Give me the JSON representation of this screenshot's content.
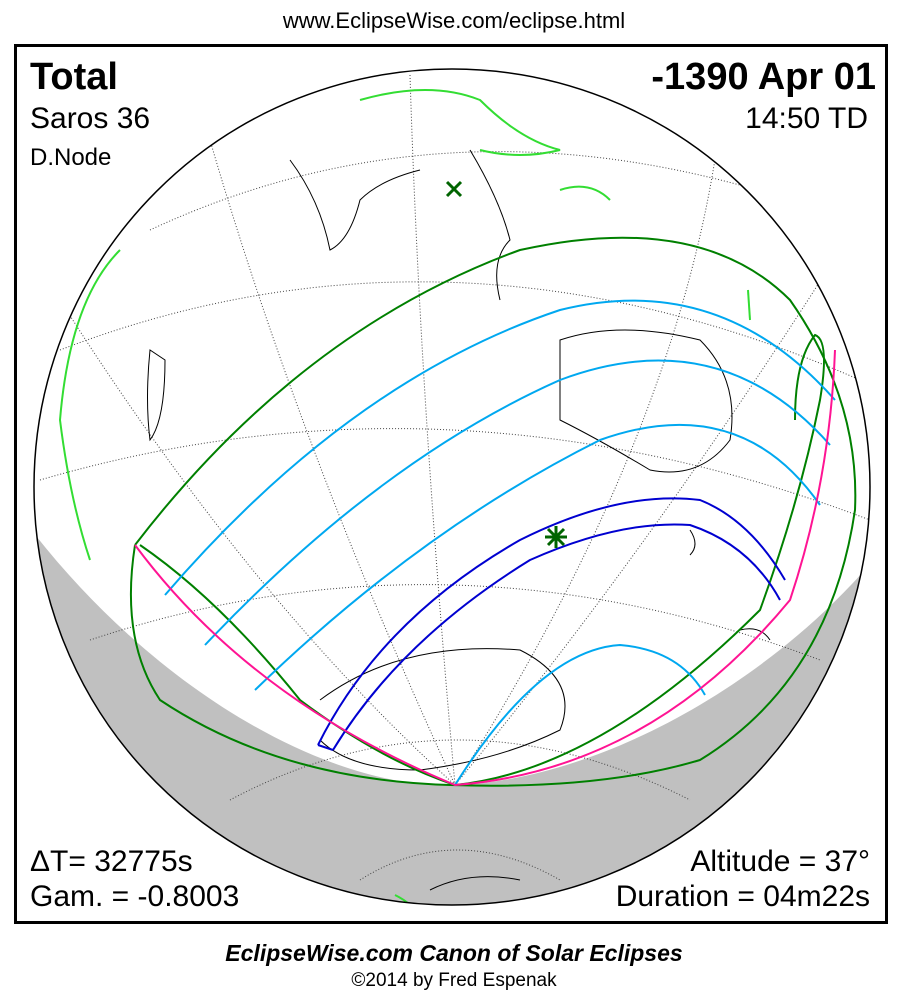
{
  "header_url": "www.EclipseWise.com/eclipse.html",
  "eclipse": {
    "type": "Total",
    "date": "-1390 Apr 01",
    "saros": "Saros  36",
    "time": "14:50 TD",
    "node": "D.Node",
    "delta_t": "ΔT=  32775s",
    "gamma": "Gam. = -0.8003",
    "altitude": "Altitude = 37°",
    "duration": "Duration = 04m22s"
  },
  "footer": {
    "title": "EclipseWise.com Canon of Solar Eclipses",
    "copyright": "©2014 by Fred Espenak"
  },
  "colors": {
    "penumbral_limit": "#008000",
    "partial_curves": "#00a8f0",
    "central_path": "#0000d0",
    "rise_set_limit": "#ff1493",
    "borders": "#33dd33",
    "night": "#c0c0c0"
  },
  "markers": {
    "greatest_eclipse": "star-icon",
    "subsolar_point": "x-icon"
  }
}
